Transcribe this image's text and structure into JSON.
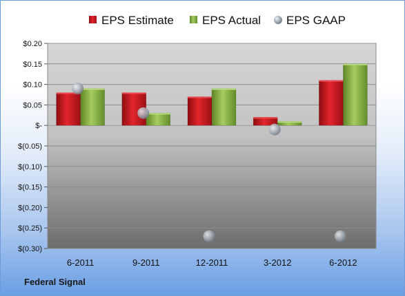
{
  "company": "Federal Signal",
  "colors": {
    "estimate": "#c8161d",
    "actual": "#8cb846",
    "gaap": "#9aa3ad"
  },
  "chart_data": {
    "type": "bar",
    "categories": [
      "6-2011",
      "9-2011",
      "12-2011",
      "3-2012",
      "6-2012"
    ],
    "series": [
      {
        "name": "EPS Estimate",
        "kind": "bar",
        "values": [
          0.08,
          0.08,
          0.07,
          0.02,
          0.11
        ]
      },
      {
        "name": "EPS Actual",
        "kind": "bar",
        "values": [
          0.09,
          0.03,
          0.09,
          0.01,
          0.15
        ]
      },
      {
        "name": "EPS GAAP",
        "kind": "point",
        "values": [
          0.09,
          0.03,
          -0.27,
          -0.01,
          -0.27
        ]
      }
    ],
    "ylim": [
      -0.3,
      0.2
    ],
    "yticks": [
      0.2,
      0.15,
      0.1,
      0.05,
      0,
      -0.05,
      -0.1,
      -0.15,
      -0.2,
      -0.25,
      -0.3
    ],
    "ytick_labels": [
      "$0.20",
      "$0.15",
      "$0.10",
      "$0.05",
      "$-",
      "$(0.05)",
      "$(0.10)",
      "$(0.15)",
      "$(0.20)",
      "$(0.25)",
      "$(0.30)"
    ],
    "grid": true,
    "legend_position": "top"
  }
}
